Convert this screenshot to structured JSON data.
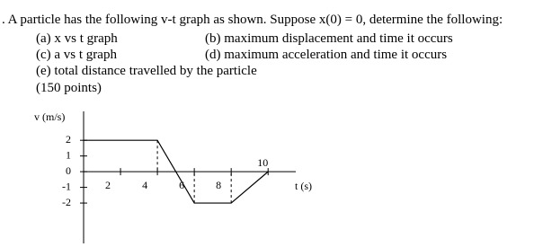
{
  "problem": {
    "intro": ". A particle has the following v-t graph as shown. Suppose x(0) = 0, determine the following:",
    "parts": [
      "(a) x vs t graph",
      "(b) maximum displacement and time it occurs",
      "(c) a vs t graph",
      "(d) maximum acceleration and time it occurs",
      "(e) total distance travelled by the particle"
    ],
    "points": "(150 points)"
  },
  "chart_data": {
    "type": "line",
    "x": [
      0,
      4,
      6,
      8,
      10
    ],
    "values": [
      2,
      2,
      -2,
      -2,
      0
    ],
    "color": "#000000",
    "xlabel": "t (s)",
    "ylabel": "v (m/s)",
    "xlim": [
      0,
      11.5
    ],
    "ylim": [
      -4,
      3.5
    ],
    "xticks": [
      2,
      4,
      6,
      8,
      10
    ],
    "yticks": [
      -2,
      -1,
      0,
      1,
      2
    ]
  }
}
